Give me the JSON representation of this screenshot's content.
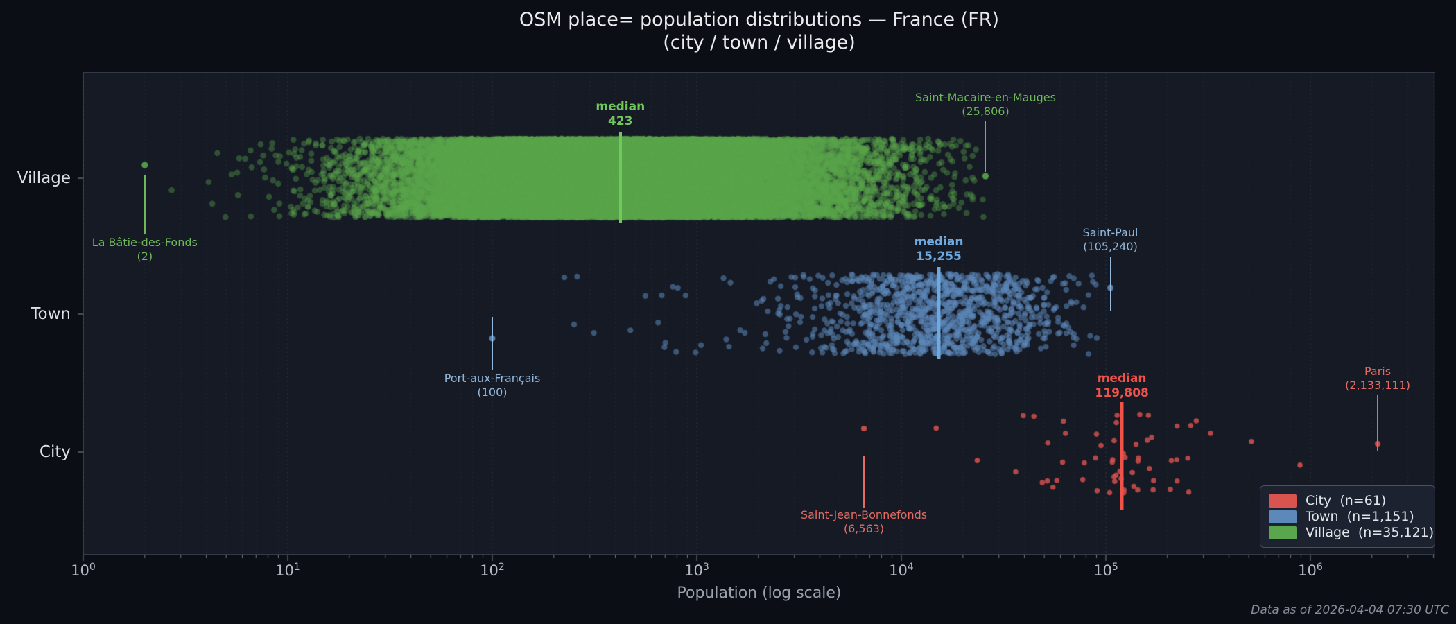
{
  "title": {
    "line1": "OSM place= population distributions — France (FR)",
    "line2": "(city / town / village)"
  },
  "axes": {
    "xlabel": "Population (log scale)",
    "x_ticks": [
      {
        "base": "10",
        "exp": "0"
      },
      {
        "base": "10",
        "exp": "1"
      },
      {
        "base": "10",
        "exp": "2"
      },
      {
        "base": "10",
        "exp": "3"
      },
      {
        "base": "10",
        "exp": "4"
      },
      {
        "base": "10",
        "exp": "5"
      },
      {
        "base": "10",
        "exp": "6"
      }
    ],
    "y_categories": [
      "Village",
      "Town",
      "City"
    ]
  },
  "legend": {
    "items": [
      {
        "label": "City  (n=61)",
        "color": "#d9534f"
      },
      {
        "label": "Town  (n=1,151)",
        "color": "#5d89ba"
      },
      {
        "label": "Village  (n=35,121)",
        "color": "#5aa64c"
      }
    ]
  },
  "footnote": "Data as of 2026-04-04 07:30 UTC",
  "chart_data": {
    "type": "scatter",
    "subtype": "jittered strip plot, one row per place category",
    "x_scale": "log",
    "x_range": [
      1,
      4000000
    ],
    "grid": "vertical dotted log gridlines, major and minor",
    "legend_position": "lower right",
    "categories": [
      "Village",
      "Town",
      "City"
    ],
    "median_word": "median",
    "series": [
      {
        "name": "Village",
        "n": 35121,
        "color": "#5aa64c",
        "accent": "#72c95b",
        "label_color": "#6eb859",
        "median": 423,
        "median_display": "423",
        "min": {
          "name": "La Bâtie-des-Fonds",
          "value": 2,
          "value_display": "(2)"
        },
        "max": {
          "name": "Saint-Macaire-en-Mauges",
          "value": 25806,
          "value_display": "(25,806)"
        }
      },
      {
        "name": "Town",
        "n": 1151,
        "color": "#5d89ba",
        "accent": "#6ea9e0",
        "label_color": "#93b8dc",
        "median": 15255,
        "median_display": "15,255",
        "min": {
          "name": "Port-aux-Français",
          "value": 100,
          "value_display": "(100)"
        },
        "max": {
          "name": "Saint-Paul",
          "value": 105240,
          "value_display": "(105,240)"
        }
      },
      {
        "name": "City",
        "n": 61,
        "color": "#d9534f",
        "accent": "#f0524a",
        "label_color": "#e56b62",
        "median": 119808,
        "median_display": "119,808",
        "min": {
          "name": "Saint-Jean-Bonnefonds",
          "value": 6563,
          "value_display": "(6,563)"
        },
        "max": {
          "name": "Paris",
          "value": 2133111,
          "value_display": "(2,133,111)"
        },
        "other_points": [
          14800,
          23500,
          515000,
          890000
        ]
      }
    ]
  }
}
